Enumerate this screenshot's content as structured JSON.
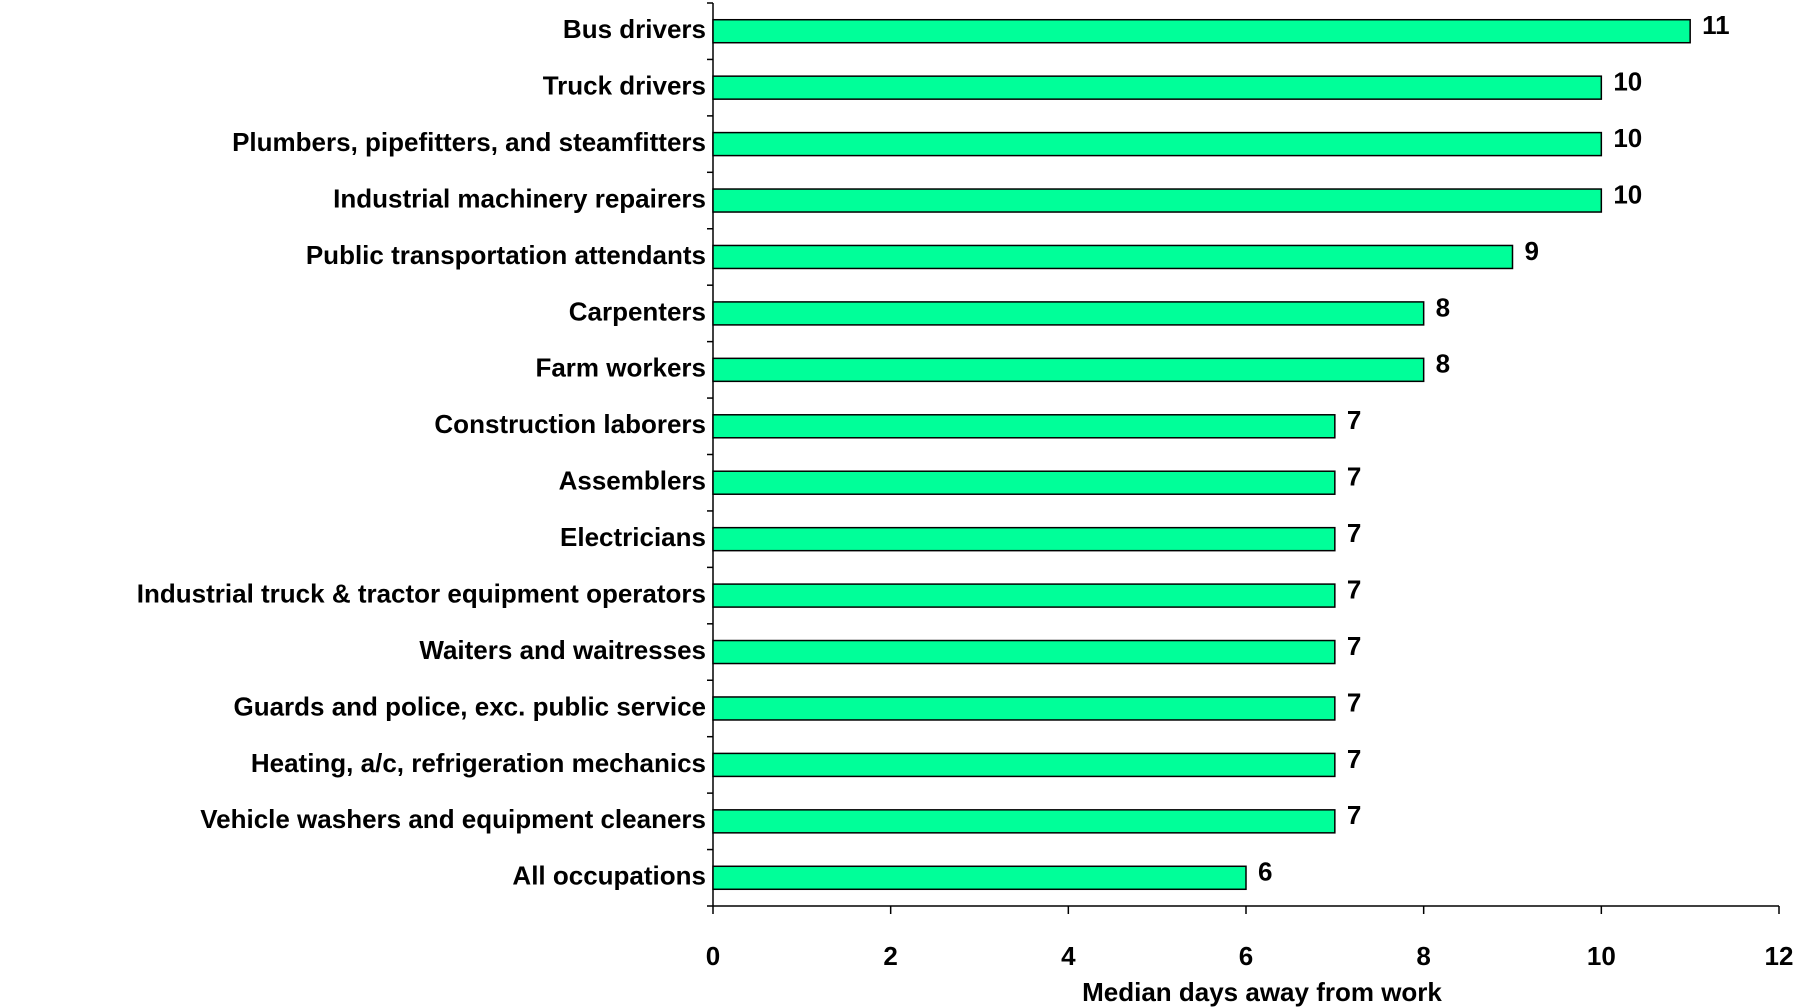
{
  "chart_data": {
    "type": "bar",
    "orientation": "horizontal",
    "x_label": "Median days away from work",
    "categories": [
      "Bus drivers",
      "Truck drivers",
      "Plumbers, pipefitters, and steamfitters",
      "Industrial machinery repairers",
      "Public transportation attendants",
      "Carpenters",
      "Farm workers",
      "Construction laborers",
      "Assemblers",
      "Electricians",
      "Industrial truck & tractor equipment operators",
      "Waiters and waitresses",
      "Guards and police, exc. public service",
      "Heating, a/c, refrigeration mechanics",
      "Vehicle washers and equipment cleaners",
      "All occupations"
    ],
    "values": [
      11,
      10,
      10,
      10,
      9,
      8,
      8,
      7,
      7,
      7,
      7,
      7,
      7,
      7,
      7,
      6
    ],
    "color": "#00ff99",
    "xlim": [
      0,
      12
    ],
    "xticks": [
      0,
      2,
      4,
      6,
      8,
      10,
      12
    ],
    "grid": false
  }
}
